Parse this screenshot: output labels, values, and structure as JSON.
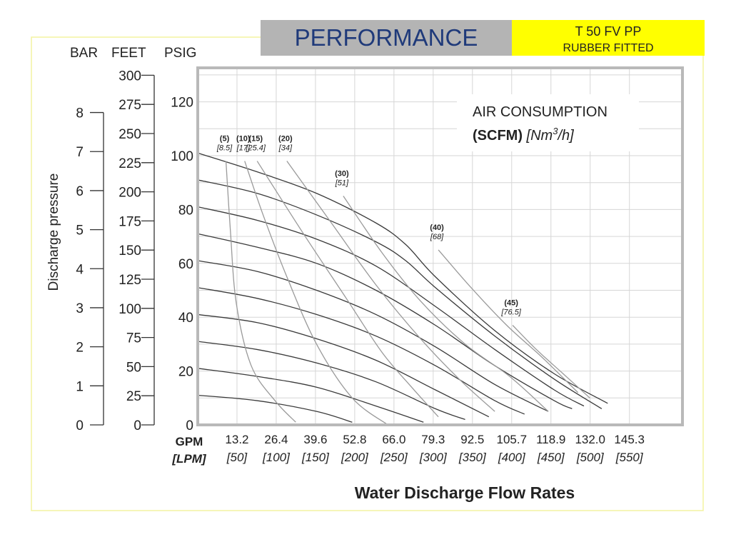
{
  "header": {
    "title": "PERFORMANCE",
    "model": "T 50 FV PP",
    "fitting": "RUBBER FITTED",
    "title_bg": "#b4b4b4",
    "model_bg": "#ffff00"
  },
  "colors": {
    "frame": "#f3f3a0",
    "plot_border": "#b9b9b9",
    "grid": "#d6d6d6",
    "pressure_curve": "#3a3a3a",
    "air_curve": "#9a9a9a",
    "text": "#222222"
  },
  "legend_box": {
    "line1": "AIR CONSUMPTION",
    "line2_bold": "(SCFM)",
    "line2_unit_prefix": "[Nm",
    "line2_unit_sup": "3",
    "line2_unit_suffix": "/h]"
  },
  "y_axes": {
    "bar_label": "BAR",
    "feet_label": "FEET",
    "psig_label": "PSIG",
    "side_label": "Discharge pressure",
    "bar_ticks": [
      "0",
      "1",
      "2",
      "3",
      "4",
      "5",
      "6",
      "7",
      "8"
    ],
    "feet_ticks": [
      "0",
      "25",
      "50",
      "75",
      "100",
      "125",
      "150",
      "175",
      "200",
      "225",
      "250",
      "275",
      "300"
    ],
    "psig_ticks": [
      "0",
      "20",
      "40",
      "60",
      "80",
      "100",
      "120"
    ]
  },
  "x_axis": {
    "gpm_label": "GPM",
    "lpm_label": "[LPM]",
    "title": "Water Discharge Flow Rates",
    "gpm_ticks": [
      "13.2",
      "26.4",
      "39.6",
      "52.8",
      "66.0",
      "79.3",
      "92.5",
      "105.7",
      "118.9",
      "132.0",
      "145.3"
    ],
    "lpm_ticks": [
      "[50]",
      "[100]",
      "[150]",
      "[200]",
      "[250]",
      "[300]",
      "[350]",
      "[400]",
      "[450]",
      "[500]",
      "[550]"
    ]
  },
  "chart_data": {
    "type": "line",
    "title": "PERFORMANCE",
    "xlabel": "Water Discharge Flow Rates",
    "x_unit": "GPM",
    "x_unit_alt": "LPM",
    "ylabel": "Discharge pressure",
    "y_unit": "PSIG",
    "xlim": [
      0,
      145.3
    ],
    "ylim": [
      0,
      130
    ],
    "grid": true,
    "pressure_curves": [
      {
        "points": [
          [
            0,
            101
          ],
          [
            20,
            94
          ],
          [
            40,
            86
          ],
          [
            60,
            75
          ],
          [
            70,
            67
          ],
          [
            80,
            55
          ],
          [
            100,
            35
          ],
          [
            120,
            19
          ],
          [
            138,
            8
          ]
        ]
      },
      {
        "points": [
          [
            0,
            91
          ],
          [
            20,
            86
          ],
          [
            40,
            78
          ],
          [
            60,
            68
          ],
          [
            70,
            61
          ],
          [
            80,
            51
          ],
          [
            100,
            33
          ],
          [
            120,
            17
          ],
          [
            136,
            6
          ]
        ]
      },
      {
        "points": [
          [
            0,
            81
          ],
          [
            20,
            76
          ],
          [
            40,
            69
          ],
          [
            60,
            59
          ],
          [
            80,
            44
          ],
          [
            100,
            28
          ],
          [
            120,
            13
          ],
          [
            130,
            7
          ]
        ]
      },
      {
        "points": [
          [
            0,
            71
          ],
          [
            20,
            66
          ],
          [
            40,
            60
          ],
          [
            60,
            50
          ],
          [
            80,
            37
          ],
          [
            100,
            22
          ],
          [
            120,
            9
          ],
          [
            126,
            6
          ]
        ]
      },
      {
        "points": [
          [
            0,
            61
          ],
          [
            20,
            57
          ],
          [
            40,
            50
          ],
          [
            60,
            41
          ],
          [
            80,
            29
          ],
          [
            100,
            15
          ],
          [
            118,
            5
          ]
        ]
      },
      {
        "points": [
          [
            0,
            51
          ],
          [
            20,
            47
          ],
          [
            40,
            41
          ],
          [
            60,
            33
          ],
          [
            80,
            22
          ],
          [
            100,
            9
          ],
          [
            110,
            4
          ]
        ]
      },
      {
        "points": [
          [
            0,
            41
          ],
          [
            20,
            38
          ],
          [
            40,
            32
          ],
          [
            60,
            24
          ],
          [
            80,
            13
          ],
          [
            98,
            3
          ]
        ]
      },
      {
        "points": [
          [
            0,
            31
          ],
          [
            20,
            28
          ],
          [
            40,
            23
          ],
          [
            60,
            16
          ],
          [
            80,
            6
          ],
          [
            90,
            2
          ]
        ]
      },
      {
        "points": [
          [
            0,
            21
          ],
          [
            20,
            18
          ],
          [
            40,
            14
          ],
          [
            60,
            7
          ],
          [
            76,
            1
          ]
        ]
      },
      {
        "points": [
          [
            0,
            11
          ],
          [
            20,
            9
          ],
          [
            40,
            5
          ],
          [
            52,
            1
          ]
        ]
      }
    ],
    "air_curves": [
      {
        "label": "(5)",
        "label_alt": "[8.5]",
        "points": [
          [
            9.5,
            98
          ],
          [
            11,
            72
          ],
          [
            13,
            45
          ],
          [
            18,
            22
          ],
          [
            26,
            9
          ],
          [
            33,
            1
          ]
        ]
      },
      {
        "label": "(10)",
        "label_alt": "[17]",
        "points": [
          [
            15.8,
            98
          ],
          [
            22,
            78
          ],
          [
            30,
            55
          ],
          [
            40,
            30
          ],
          [
            52,
            10
          ],
          [
            64,
            0
          ]
        ]
      },
      {
        "label": "(15)",
        "label_alt": "[25.4]",
        "points": [
          [
            20,
            98
          ],
          [
            35,
            72
          ],
          [
            50,
            47
          ],
          [
            62,
            27
          ],
          [
            72,
            14
          ],
          [
            81,
            3
          ]
        ]
      },
      {
        "label": "(20)",
        "label_alt": "[34]",
        "points": [
          [
            30,
            98
          ],
          [
            45,
            75
          ],
          [
            60,
            52
          ],
          [
            75,
            32
          ],
          [
            88,
            17
          ],
          [
            100,
            5
          ]
        ]
      },
      {
        "label": "(30)",
        "label_alt": "[51]",
        "points": [
          [
            49,
            85
          ],
          [
            62,
            64
          ],
          [
            75,
            46
          ],
          [
            90,
            30
          ],
          [
            105,
            18
          ],
          [
            118,
            5
          ]
        ]
      },
      {
        "label": "(40)",
        "label_alt": "[68]",
        "points": [
          [
            81,
            65
          ],
          [
            92,
            51
          ],
          [
            104,
            37
          ],
          [
            116,
            25
          ],
          [
            128,
            12
          ]
        ]
      },
      {
        "label": "(45)",
        "label_alt": "[76.5]",
        "points": [
          [
            106,
            37
          ],
          [
            114,
            28
          ],
          [
            123,
            19
          ],
          [
            132,
            10
          ]
        ]
      }
    ]
  }
}
